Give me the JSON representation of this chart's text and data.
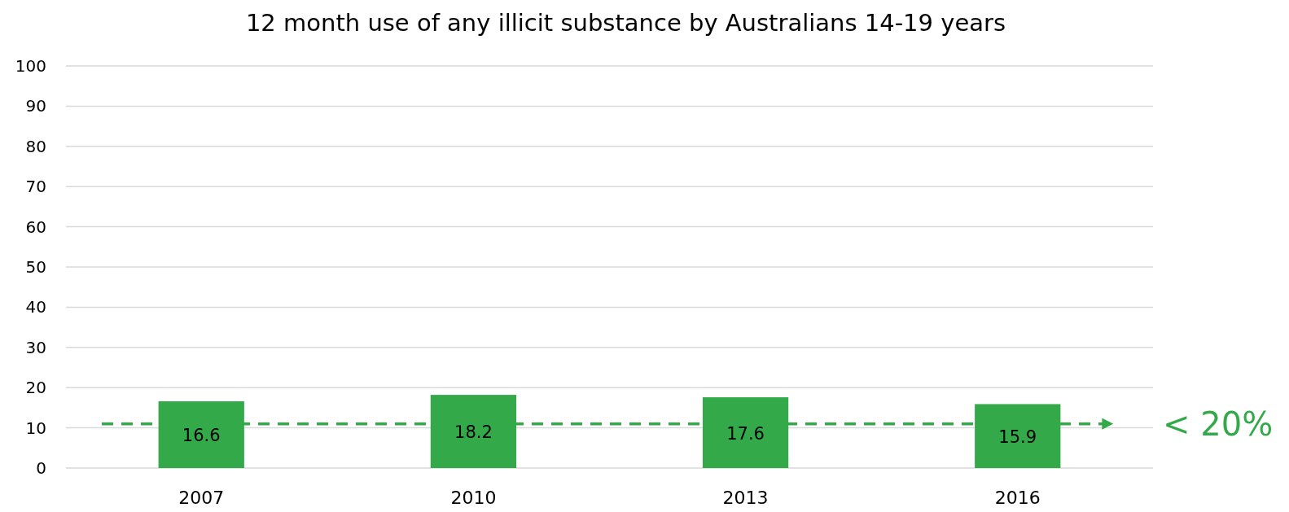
{
  "chart_data": {
    "type": "bar",
    "title": "12 month use of any illicit substance by Australians 14-19 years",
    "categories": [
      "2007",
      "2010",
      "2013",
      "2016"
    ],
    "values": [
      16.6,
      18.2,
      17.6,
      15.9
    ],
    "color": "#34a94a",
    "ylim": [
      0,
      100
    ],
    "yticks": [
      0,
      10,
      20,
      30,
      40,
      50,
      60,
      70,
      80,
      90,
      100
    ],
    "grid": "y",
    "data_labels": true,
    "ref_lines": [
      {
        "axis": "y",
        "value": 11,
        "color": "#34a94a",
        "line_style": "dashed"
      }
    ],
    "annotations": [
      "< 20%"
    ]
  }
}
